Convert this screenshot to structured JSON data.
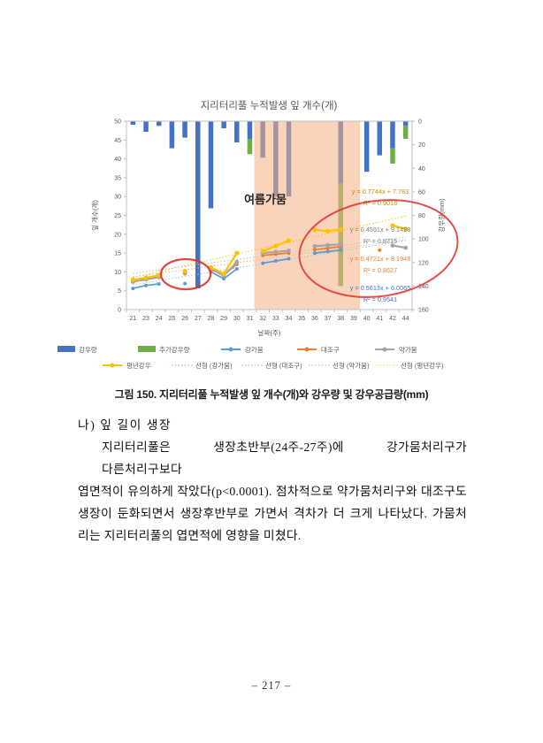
{
  "page": {
    "caption": "그림 150. 지리터리풀 누적발생 잎 개수(개)와 강우량 및 강우공급량(mm)",
    "heading": "나) 잎 길이 생장",
    "body_lines": [
      "지리터리풀은 생장초반부(24주-27주)에 강가뭄처리구가 다른처리구보다",
      "엽면적이 유의하게 작았다(p<0.0001). 점차적으로 약가뭄처리구와 대조구도",
      "생장이 둔화되면서 생장후반부로 가면서 격차가 더 크게 나타났다. 가뭄처",
      "리는 지리터리풀의 엽면적에 영향을 미쳤다."
    ],
    "page_number": "– 217 –"
  },
  "chart_data": {
    "type": "combo-bar-line",
    "title": "지리터리풀 누적발생 잎 개수(개)",
    "x_axis": {
      "label": "날짜(주)",
      "categories": [
        21,
        23,
        24,
        25,
        26,
        27,
        28,
        29,
        30,
        31,
        32,
        33,
        34,
        35,
        36,
        37,
        38,
        39,
        40,
        41,
        42,
        44
      ]
    },
    "y_left": {
      "label": "잎 개수(개)",
      "min": 0,
      "max": 50,
      "step": 5
    },
    "y_right": {
      "label": "강우량(mm)",
      "min": 0,
      "max": 160,
      "step": 20,
      "inverted": true
    },
    "bar_series": [
      {
        "name": "강우량",
        "color": "#4472C4",
        "values": [
          3,
          9,
          4,
          23,
          14,
          142,
          74,
          6,
          18,
          15,
          31,
          64,
          64,
          0,
          0,
          0,
          53,
          0,
          43,
          29,
          23,
          4
        ]
      },
      {
        "name": "추가강우량",
        "color": "#70AD47",
        "values": [
          0,
          0,
          0,
          0,
          0,
          0,
          0,
          0,
          0,
          13,
          0,
          0,
          0,
          0,
          0,
          0,
          87,
          0,
          0,
          0,
          13,
          11
        ]
      }
    ],
    "line_series": [
      {
        "name": "강가뭄",
        "color": "#5B9BD5",
        "values": [
          5.6,
          6.4,
          6.8,
          null,
          6.9,
          null,
          10,
          8.2,
          10.8,
          null,
          12.3,
          12.9,
          13.5,
          null,
          15,
          15.4,
          15.8,
          null,
          null,
          null,
          null,
          null
        ]
      },
      {
        "name": "대조구",
        "color": "#ED7D31",
        "values": [
          7.6,
          8.1,
          8.8,
          null,
          9.5,
          null,
          10.6,
          9.2,
          12,
          null,
          14.4,
          14.7,
          15,
          null,
          15.9,
          16.3,
          16.7,
          null,
          null,
          15.8,
          null,
          null
        ]
      },
      {
        "name": "약가뭄",
        "color": "#A5A5A5",
        "values": [
          7.4,
          8,
          8.6,
          null,
          9.7,
          null,
          10.9,
          9,
          12.6,
          null,
          15,
          15.3,
          15.6,
          null,
          16.8,
          17.1,
          17.3,
          null,
          null,
          null,
          17,
          16.4
        ]
      },
      {
        "name": "평년강우",
        "color": "#FFC000",
        "values": [
          7.9,
          8.4,
          9.1,
          null,
          10.2,
          null,
          11.2,
          9.5,
          15,
          null,
          15.5,
          16.9,
          18.3,
          null,
          21.2,
          20.8,
          21.3,
          null,
          null,
          null,
          22.3,
          21.4
        ]
      }
    ],
    "trendlines": [
      {
        "name": "선형 (평년강우)",
        "color": "#BF9000",
        "line_color": "#FFC000",
        "slope": 0.7744,
        "intercept": 7.783,
        "equation": "y = 0.7744x + 7.783",
        "r2": "R² = 0.9018"
      },
      {
        "name": "선형 (약가뭄)",
        "color": "#7F7F7F",
        "line_color": "#BFBFBF",
        "slope": 0.4591,
        "intercept": 9.1428,
        "equation": "y = 0.4591x + 9.1428",
        "r2": "R² = 0.8715"
      },
      {
        "name": "선형 (대조구)",
        "color": "#ED7D31",
        "line_color": "#F4B183",
        "slope": 0.4721,
        "intercept": 8.1948,
        "equation": "y = 0.4721x + 8.1948",
        "r2": "R² = 0.8627"
      },
      {
        "name": "선형 (강가뭄)",
        "color": "#4472C4",
        "line_color": "#9DC3E6",
        "slope": 0.5613,
        "intercept": 6.0065,
        "equation": "y = 0.5613x + 6.0065",
        "r2": "R² = 0.9541"
      }
    ],
    "legend": {
      "row1": [
        {
          "label": "강우량",
          "swatch": "bar",
          "color": "#4472C4"
        },
        {
          "label": "추가강우량",
          "swatch": "bar",
          "color": "#70AD47"
        },
        {
          "label": "강가뭄",
          "swatch": "line",
          "color": "#5B9BD5"
        },
        {
          "label": "대조구",
          "swatch": "line",
          "color": "#ED7D31"
        },
        {
          "label": "약가뭄",
          "swatch": "line",
          "color": "#A5A5A5"
        }
      ],
      "row2": [
        {
          "label": "평년강우",
          "swatch": "line",
          "color": "#FFC000"
        },
        {
          "label": "선형 (강가뭄)",
          "swatch": "dotted",
          "color": "#5B9BD5"
        },
        {
          "label": "선형 (대조구)",
          "swatch": "dotted",
          "color": "#ED7D31"
        },
        {
          "label": "선형 (약가뭄)",
          "swatch": "dotted",
          "color": "#A5A5A5"
        },
        {
          "label": "선형 (평년강우)",
          "swatch": "dotted",
          "color": "#FFC000"
        }
      ]
    },
    "annotations": {
      "shaded_region": {
        "label": "여름가뭄",
        "from_week": 31,
        "to_week": 39,
        "color": "#F7CBAD"
      },
      "red_circles": [
        "weeks 25-26 low data cluster",
        "late-season values and trendline equations"
      ],
      "red_color": "#E0312E"
    }
  }
}
